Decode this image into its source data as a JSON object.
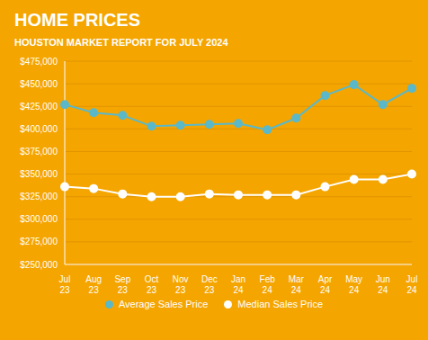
{
  "chart_data": {
    "type": "line",
    "title": "HOME PRICES",
    "subtitle": "HOUSTON MARKET REPORT FOR JULY 2024",
    "categories": [
      "Jul\n23",
      "Aug\n23",
      "Sep\n23",
      "Oct\n23",
      "Nov\n23",
      "Dec\n23",
      "Jan\n24",
      "Feb\n24",
      "Mar\n24",
      "Apr\n24",
      "May\n24",
      "Jun\n24",
      "Jul\n24"
    ],
    "series": [
      {
        "name": "Average Sales Price",
        "color": "#5BB8C8",
        "marker": "circle",
        "values": [
          427000,
          418000,
          415000,
          403000,
          404000,
          405000,
          406000,
          399000,
          412000,
          437000,
          449000,
          427000,
          445000
        ]
      },
      {
        "name": "Median Sales Price",
        "color": "#FFFFFF",
        "marker": "circle",
        "values": [
          336000,
          334000,
          328000,
          325000,
          325000,
          328000,
          327000,
          327000,
          327000,
          336000,
          344000,
          344000,
          350000
        ]
      }
    ],
    "ylim": [
      250000,
      475000
    ],
    "yticks": [
      {
        "value": 250000,
        "label": "$250,000"
      },
      {
        "value": 275000,
        "label": "$275,000"
      },
      {
        "value": 300000,
        "label": "$300,000"
      },
      {
        "value": 325000,
        "label": "$325,000"
      },
      {
        "value": 350000,
        "label": "$350,000"
      },
      {
        "value": 375000,
        "label": "$375,000"
      },
      {
        "value": 400000,
        "label": "$400,000"
      },
      {
        "value": 425000,
        "label": "$425,000"
      },
      {
        "value": 450000,
        "label": "$450,000"
      },
      {
        "value": 475000,
        "label": "$475,000"
      }
    ],
    "grid": true,
    "legend": "bottom"
  }
}
